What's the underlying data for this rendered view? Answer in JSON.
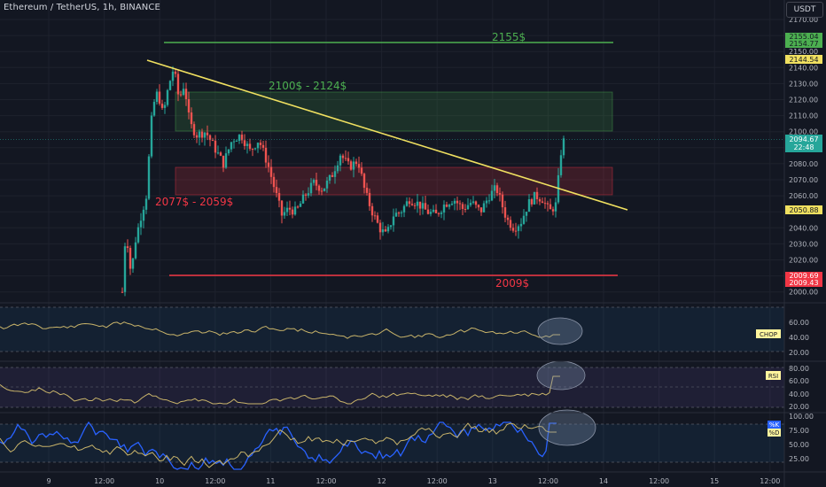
{
  "header": {
    "title": "Ethereum / TetherUS, 1h, BINANCE",
    "currency": "USDT"
  },
  "price_axis": {
    "ticks": [
      "2170.00",
      "2160.00",
      "2150.00",
      "2140.00",
      "2130.00",
      "2120.00",
      "2110.00",
      "2100.00",
      "2090.00",
      "2080.00",
      "2070.00",
      "2060.00",
      "2050.00",
      "2040.00",
      "2030.00",
      "2020.00",
      "2010.00",
      "2000.00"
    ]
  },
  "badges": {
    "target_1": "2155.04",
    "target_2": "2154.77",
    "yellow_line": "2144.54",
    "current_price": "2094.67",
    "countdown": "22:48",
    "trend_value": "2050.88",
    "support_1": "2009.69",
    "support_2": "2009.43"
  },
  "annotations": {
    "resistance_label": "2155$",
    "upper_zone_label": "2100$ - 2124$",
    "lower_zone_label": "2077$ - 2059$",
    "support_label": "2009$"
  },
  "indicators": {
    "chop": {
      "name": "CHOP",
      "ticks": [
        "60.00",
        "40.00",
        "20.00"
      ]
    },
    "rsi": {
      "name": "RSI",
      "ticks": [
        "80.00",
        "60.00",
        "40.00",
        "20.00"
      ]
    },
    "stoch": {
      "k": "%K",
      "d": "%D",
      "ticks": [
        "100.00",
        "75.00",
        "50.00",
        "25.00"
      ]
    }
  },
  "time_axis": {
    "labels": [
      "9",
      "12:00",
      "10",
      "12:00",
      "11",
      "12:00",
      "12",
      "12:00",
      "13",
      "12:00",
      "14",
      "12:00",
      "15",
      "12:00"
    ]
  },
  "colors": {
    "bg": "#131722",
    "up": "#26a69a",
    "down": "#ef5350",
    "trend": "#f0e060",
    "green_level": "#4caf50",
    "red_level": "#f23645"
  }
}
